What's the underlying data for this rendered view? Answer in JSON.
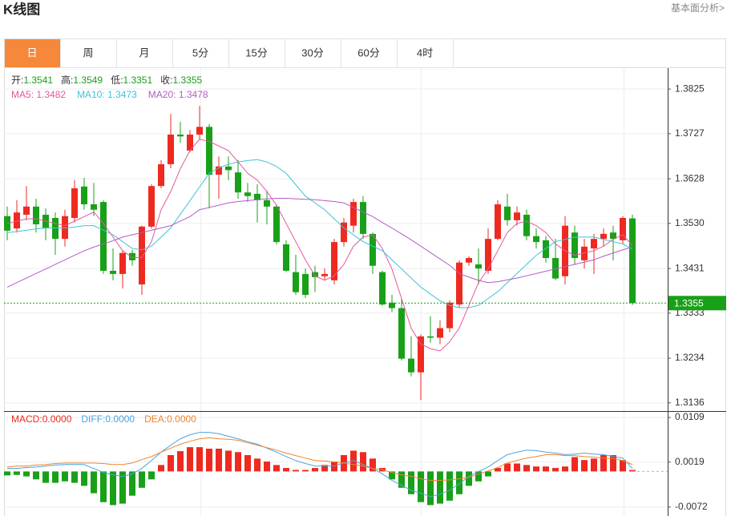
{
  "header": {
    "title": "K线图",
    "link": "基本面分析>"
  },
  "tabs": [
    "日",
    "周",
    "月",
    "5分",
    "15分",
    "30分",
    "60分",
    "4时"
  ],
  "active_tab": 0,
  "chart_data": [
    {
      "type": "candlestick",
      "ohlc_labels": [
        "开:",
        "高:",
        "低:",
        "收:"
      ],
      "readout_separator": ": ",
      "up_color": "#ee2a20",
      "down_color": "#19a019",
      "open": [
        1.3546,
        1.3519,
        1.3549,
        1.3567,
        1.3549,
        1.3542,
        1.3496,
        1.3542,
        1.3611,
        1.3572,
        1.3577,
        1.3426,
        1.3419,
        1.3465,
        1.3396,
        1.3523,
        1.3612,
        1.366,
        1.3725,
        1.369,
        1.3725,
        1.3742,
        1.3637,
        1.3655,
        1.3642,
        1.3598,
        1.3595,
        1.3581,
        1.3567,
        1.3484,
        1.3423,
        1.3419,
        1.3423,
        1.3414,
        1.3405,
        1.3489,
        1.3525,
        1.3577,
        1.3507,
        1.3423,
        1.3356,
        1.3344,
        1.3233,
        1.3203,
        1.3282,
        1.3279,
        1.33,
        1.3352,
        1.3444,
        1.344,
        1.3426,
        1.3496,
        1.3567,
        1.3537,
        1.3549,
        1.3502,
        1.3493,
        1.3454,
        1.3414,
        1.351,
        1.3449,
        1.3475,
        1.3496,
        1.351,
        1.3493,
        1.3541
      ],
      "high": [
        1.3567,
        1.3581,
        1.3612,
        1.3584,
        1.3563,
        1.3554,
        1.356,
        1.3625,
        1.363,
        1.3619,
        1.3581,
        1.3475,
        1.347,
        1.3472,
        1.3525,
        1.3616,
        1.3669,
        1.377,
        1.3753,
        1.3735,
        1.3788,
        1.3748,
        1.3677,
        1.3677,
        1.3669,
        1.3619,
        1.3616,
        1.3602,
        1.3572,
        1.3493,
        1.3461,
        1.3431,
        1.3437,
        1.3431,
        1.3496,
        1.3542,
        1.3584,
        1.359,
        1.351,
        1.3426,
        1.3373,
        1.3366,
        1.3282,
        1.3286,
        1.3326,
        1.3317,
        1.3361,
        1.3449,
        1.3458,
        1.3475,
        1.3519,
        1.3581,
        1.3595,
        1.3567,
        1.356,
        1.3519,
        1.3502,
        1.3496,
        1.3546,
        1.3525,
        1.3496,
        1.3507,
        1.3519,
        1.3525,
        1.3546,
        1.3549
      ],
      "low": [
        1.3493,
        1.351,
        1.3537,
        1.351,
        1.3493,
        1.3461,
        1.3479,
        1.3532,
        1.356,
        1.3546,
        1.3419,
        1.3405,
        1.3387,
        1.3437,
        1.3373,
        1.3519,
        1.3607,
        1.3651,
        1.3707,
        1.3686,
        1.3713,
        1.3563,
        1.3584,
        1.3625,
        1.3584,
        1.3577,
        1.3532,
        1.3528,
        1.3484,
        1.3423,
        1.3373,
        1.3366,
        1.3379,
        1.3405,
        1.3396,
        1.3479,
        1.351,
        1.3496,
        1.3419,
        1.3349,
        1.3335,
        1.3229,
        1.3194,
        1.3142,
        1.3268,
        1.3265,
        1.3291,
        1.3344,
        1.3437,
        1.3396,
        1.3419,
        1.3493,
        1.3525,
        1.3525,
        1.3493,
        1.3475,
        1.3444,
        1.3405,
        1.3396,
        1.344,
        1.3431,
        1.3419,
        1.3479,
        1.3449,
        1.3484,
        1.3351
      ],
      "close": [
        1.3514,
        1.3554,
        1.3567,
        1.3528,
        1.3519,
        1.3496,
        1.3546,
        1.3607,
        1.3572,
        1.356,
        1.3426,
        1.3419,
        1.3465,
        1.3449,
        1.3523,
        1.3612,
        1.366,
        1.3725,
        1.3721,
        1.3725,
        1.3742,
        1.3637,
        1.3655,
        1.3647,
        1.3598,
        1.359,
        1.3581,
        1.3567,
        1.3489,
        1.3426,
        1.3379,
        1.3373,
        1.3412,
        1.3419,
        1.3489,
        1.3532,
        1.3577,
        1.3507,
        1.3437,
        1.3352,
        1.3344,
        1.3233,
        1.3203,
        1.3282,
        1.3279,
        1.33,
        1.3356,
        1.3444,
        1.3454,
        1.3431,
        1.3496,
        1.3572,
        1.3537,
        1.3554,
        1.3502,
        1.3489,
        1.3454,
        1.3409,
        1.3525,
        1.3454,
        1.3479,
        1.3496,
        1.3507,
        1.3496,
        1.3542,
        1.3355
      ],
      "series": [
        {
          "name": "MA5",
          "color": "#e2589c",
          "values": [
            1.353,
            1.3535,
            1.354,
            1.354,
            1.3535,
            1.353,
            1.3525,
            1.3535,
            1.3545,
            1.3555,
            1.353,
            1.35,
            1.347,
            1.3455,
            1.3455,
            1.349,
            1.356,
            1.36,
            1.365,
            1.369,
            1.3715,
            1.371,
            1.37,
            1.369,
            1.3665,
            1.364,
            1.3625,
            1.36,
            1.357,
            1.353,
            1.349,
            1.345,
            1.3415,
            1.3405,
            1.3415,
            1.344,
            1.348,
            1.35,
            1.3505,
            1.3475,
            1.343,
            1.3365,
            1.33,
            1.3265,
            1.3255,
            1.325,
            1.327,
            1.33,
            1.335,
            1.34,
            1.343,
            1.347,
            1.351,
            1.353,
            1.3535,
            1.3525,
            1.351,
            1.3485,
            1.347,
            1.346,
            1.3465,
            1.347,
            1.348,
            1.3495,
            1.3505,
            1.3482
          ]
        },
        {
          "name": "MA10",
          "color": "#3ec4d6",
          "values": [
            1.351,
            1.3512,
            1.3515,
            1.3518,
            1.352,
            1.352,
            1.352,
            1.3522,
            1.3525,
            1.3525,
            1.3515,
            1.3505,
            1.349,
            1.3475,
            1.3472,
            1.348,
            1.35,
            1.352,
            1.355,
            1.358,
            1.361,
            1.364,
            1.3652,
            1.366,
            1.3665,
            1.3668,
            1.367,
            1.3665,
            1.3655,
            1.364,
            1.3615,
            1.359,
            1.3575,
            1.356,
            1.354,
            1.352,
            1.3505,
            1.349,
            1.348,
            1.347,
            1.345,
            1.343,
            1.341,
            1.339,
            1.3375,
            1.336,
            1.335,
            1.3345,
            1.3345,
            1.335,
            1.3365,
            1.338,
            1.34,
            1.342,
            1.344,
            1.346,
            1.3475,
            1.349,
            1.3495,
            1.35,
            1.35,
            1.35,
            1.3495,
            1.349,
            1.3485,
            1.3473
          ]
        },
        {
          "name": "MA20",
          "color": "#b15cc6",
          "values": [
            1.339,
            1.34,
            1.341,
            1.342,
            1.343,
            1.344,
            1.345,
            1.346,
            1.347,
            1.3478,
            1.3485,
            1.3492,
            1.35,
            1.3505,
            1.351,
            1.3515,
            1.352,
            1.3525,
            1.3535,
            1.3545,
            1.356,
            1.3565,
            1.357,
            1.3575,
            1.3578,
            1.358,
            1.3582,
            1.3584,
            1.3585,
            1.3585,
            1.3584,
            1.3583,
            1.3582,
            1.358,
            1.3578,
            1.3575,
            1.3565,
            1.3555,
            1.3545,
            1.3532,
            1.352,
            1.3507,
            1.3494,
            1.348,
            1.3466,
            1.3452,
            1.3438,
            1.342,
            1.3412,
            1.3405,
            1.34,
            1.3402,
            1.3406,
            1.341,
            1.3415,
            1.342,
            1.3425,
            1.343,
            1.3435,
            1.344,
            1.3445,
            1.345,
            1.3458,
            1.3465,
            1.3472,
            1.3478
          ]
        }
      ],
      "last_price_line": true,
      "ylim": [
        1.3118,
        1.3871
      ],
      "yticks": [
        1.3825,
        1.3727,
        1.3628,
        {
          "value": 1.353,
          "label": "1.3530"
        },
        1.3431,
        1.3333,
        1.3234,
        1.3136
      ],
      "grid": true
    },
    {
      "type": "macd",
      "readout_separator": ":",
      "readout_values": [
        {
          "value": 0,
          "label": "0.0000"
        },
        {
          "value": 0,
          "label": "0.0000"
        },
        {
          "value": 0,
          "label": "0.0000"
        }
      ],
      "series": [
        {
          "name": "MACD",
          "style": "bar",
          "color": "#ee2a20",
          "down_color": "#19a019",
          "values": [
            -0.0008,
            -0.0007,
            -0.001,
            -0.0016,
            -0.0023,
            -0.0023,
            -0.002,
            -0.0023,
            -0.0029,
            -0.0044,
            -0.0062,
            -0.0068,
            -0.0065,
            -0.0049,
            -0.0033,
            -0.0016,
            0.0013,
            0.0033,
            0.0041,
            0.0049,
            0.0049,
            0.0046,
            0.0046,
            0.0042,
            0.0039,
            0.0033,
            0.0026,
            0.002,
            0.0013,
            0.0007,
            0.0003,
            0.0003,
            0.0007,
            0.0013,
            0.002,
            0.0033,
            0.0042,
            0.0039,
            0.0026,
            0.0007,
            -0.0016,
            -0.0033,
            -0.0046,
            -0.0062,
            -0.0068,
            -0.0065,
            -0.0059,
            -0.0046,
            -0.0029,
            -0.002,
            -0.001,
            0.0007,
            0.0016,
            0.0016,
            0.0013,
            0.001,
            0.001,
            0.0007,
            0.001,
            0.0029,
            0.0023,
            0.0026,
            0.0033,
            0.0033,
            0.0023,
            0.0003
          ]
        },
        {
          "name": "DIFF",
          "style": "line",
          "color": "#4aa3df",
          "values": [
            0.0006,
            0.0006,
            0.0008,
            0.0009,
            0.0011,
            0.0013,
            0.0014,
            0.0014,
            0.0014,
            0.0006,
            -0.0002,
            -0.0007,
            -0.001,
            -0.0005,
            0.0006,
            0.0022,
            0.0039,
            0.0053,
            0.0066,
            0.0074,
            0.0079,
            0.0079,
            0.0076,
            0.0071,
            0.0066,
            0.006,
            0.0055,
            0.0047,
            0.0039,
            0.003,
            0.0022,
            0.0016,
            0.0011,
            0.0011,
            0.0011,
            0.0017,
            0.0022,
            0.0014,
            0.0006,
            -0.0005,
            -0.0018,
            -0.0028,
            -0.0038,
            -0.0044,
            -0.0051,
            -0.0046,
            -0.0038,
            -0.0025,
            -0.001,
            0.0,
            0.0009,
            0.0022,
            0.0034,
            0.0039,
            0.0043,
            0.0042,
            0.0039,
            0.0037,
            0.0034,
            0.0035,
            0.0037,
            0.0035,
            0.0034,
            0.003,
            0.0027,
            0.0006
          ]
        },
        {
          "name": "DEA",
          "style": "line",
          "color": "#f0842c",
          "values": [
            0.0009,
            0.0011,
            0.0011,
            0.0013,
            0.0014,
            0.0016,
            0.0017,
            0.0017,
            0.0017,
            0.0017,
            0.0016,
            0.0014,
            0.0014,
            0.0017,
            0.0024,
            0.003,
            0.0039,
            0.0047,
            0.0055,
            0.0061,
            0.0066,
            0.0068,
            0.0066,
            0.0065,
            0.0063,
            0.0058,
            0.0053,
            0.0048,
            0.0043,
            0.0037,
            0.0032,
            0.0027,
            0.0022,
            0.0021,
            0.0019,
            0.0017,
            0.0014,
            0.0011,
            0.0006,
            0.0003,
            -0.0002,
            -0.0007,
            -0.001,
            -0.0015,
            -0.0018,
            -0.0018,
            -0.0017,
            -0.0015,
            -0.0012,
            -0.0005,
            0.0001,
            0.0008,
            0.0017,
            0.0022,
            0.0027,
            0.003,
            0.0034,
            0.0034,
            0.0032,
            0.0032,
            0.003,
            0.0029,
            0.0027,
            0.0026,
            0.0022,
            0.0014
          ]
        }
      ],
      "ylim": [
        -0.009,
        0.0122
      ],
      "yticks": [
        0.0109,
        0.0019,
        -0.0072
      ],
      "grid": true
    }
  ]
}
